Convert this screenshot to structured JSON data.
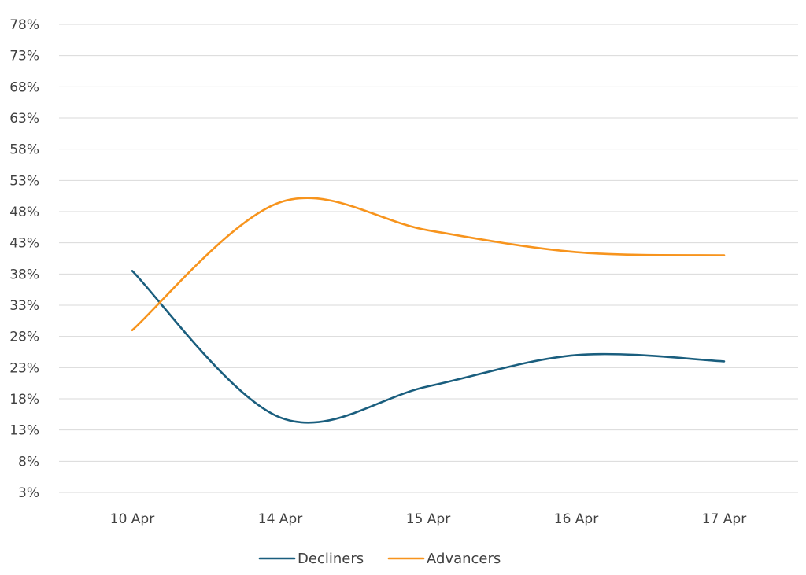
{
  "chart_data": {
    "type": "line",
    "title": "",
    "xlabel": "",
    "ylabel": "",
    "categories": [
      "10 Apr",
      "14 Apr",
      "15 Apr",
      "16 Apr",
      "17 Apr"
    ],
    "y_ticks": [
      "3%",
      "8%",
      "13%",
      "18%",
      "23%",
      "28%",
      "33%",
      "38%",
      "43%",
      "48%",
      "53%",
      "58%",
      "63%",
      "68%",
      "73%",
      "78%"
    ],
    "ylim": [
      3,
      78
    ],
    "y_unit": "%",
    "grid": "horizontal",
    "legend_position": "bottom",
    "series": [
      {
        "name": "Decliners",
        "color": "#1a5e7e",
        "values": [
          38.5,
          15.0,
          20.0,
          25.0,
          24.0
        ]
      },
      {
        "name": "Advancers",
        "color": "#f7941d",
        "values": [
          29.0,
          49.5,
          45.0,
          41.5,
          41.0
        ]
      }
    ]
  }
}
